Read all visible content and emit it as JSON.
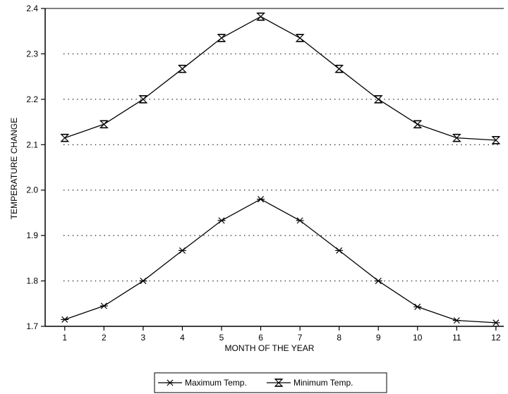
{
  "chart_data": {
    "type": "line",
    "title": "",
    "xlabel": "MONTH OF THE YEAR",
    "ylabel": "TEMPERATURE CHANGE",
    "x": [
      1,
      2,
      3,
      4,
      5,
      6,
      7,
      8,
      9,
      10,
      11,
      12
    ],
    "xlim": [
      0.5,
      12.2
    ],
    "ylim": [
      1.7,
      2.4
    ],
    "yticks": [
      "1.7",
      "1.8",
      "1.9",
      "2.0",
      "2.1",
      "2.2",
      "2.3",
      "2.4"
    ],
    "xticks": [
      "1",
      "2",
      "3",
      "4",
      "5",
      "6",
      "7",
      "8",
      "9",
      "10",
      "11",
      "12"
    ],
    "grid": "dotted-horizontal",
    "legend_position": "bottom-center",
    "series": [
      {
        "name": "Maximum Temp.",
        "marker": "asterisk",
        "values": [
          1.715,
          1.745,
          1.8,
          1.867,
          1.933,
          1.98,
          1.933,
          1.867,
          1.8,
          1.743,
          1.713,
          1.708
        ]
      },
      {
        "name": "Minimum Temp.",
        "marker": "hourglass",
        "values": [
          2.115,
          2.145,
          2.2,
          2.267,
          2.335,
          2.382,
          2.335,
          2.267,
          2.2,
          2.145,
          2.115,
          2.11
        ]
      }
    ],
    "colors": {
      "line": "#000000",
      "grid": "#000000"
    }
  }
}
